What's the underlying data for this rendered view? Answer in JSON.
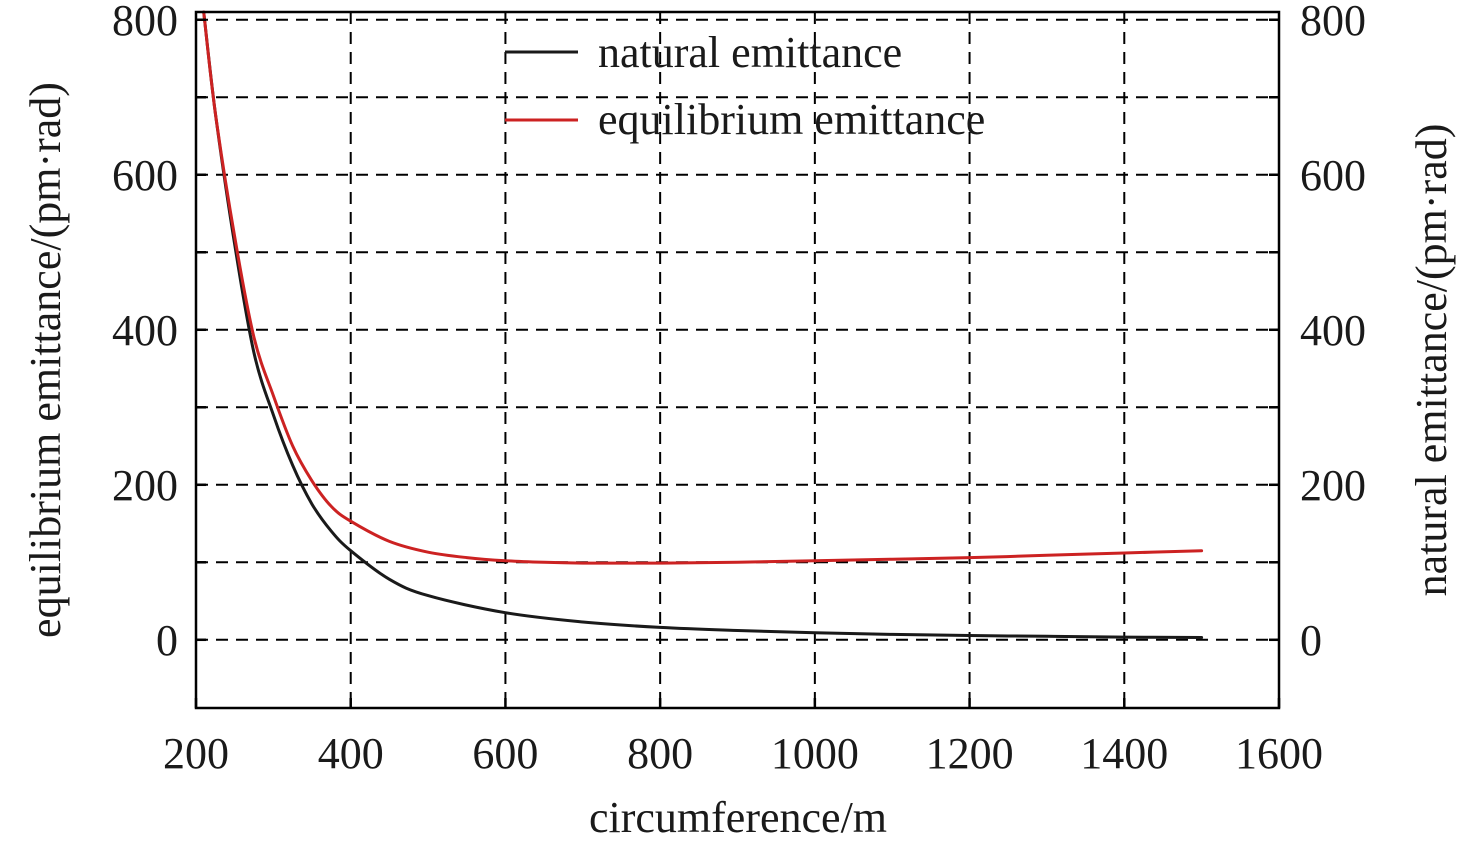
{
  "chart_data": {
    "type": "line",
    "xlabel": "circumference/m",
    "ylabel_left": "equilibrium emittance/(pm·rad)",
    "ylabel_right": "natural emittance/(pm·rad)",
    "xlim": [
      200,
      1600
    ],
    "ylim": [
      -88,
      810
    ],
    "x_ticks": [
      200,
      400,
      600,
      800,
      1000,
      1200,
      1400,
      1600
    ],
    "y_ticks": [
      0,
      200,
      400,
      600,
      800
    ],
    "y_gridlines": [
      0,
      100,
      200,
      300,
      400,
      500,
      600,
      700,
      800
    ],
    "grid": true,
    "legend_position": "top-center",
    "series": [
      {
        "name": "natural emittance",
        "color": "#1a1a1a",
        "x": [
          210,
          225,
          250,
          275,
          300,
          325,
          350,
          375,
          400,
          450,
          500,
          600,
          700,
          800,
          900,
          1000,
          1100,
          1200,
          1300,
          1400,
          1500
        ],
        "y": [
          810,
          680,
          510,
          370,
          290,
          225,
          175,
          140,
          115,
          78,
          57,
          35,
          23,
          16,
          12,
          9,
          7,
          5.5,
          4.5,
          3.5,
          3
        ]
      },
      {
        "name": "equilibrium emittance",
        "color": "#cc2222",
        "x": [
          210,
          225,
          250,
          275,
          300,
          325,
          350,
          375,
          400,
          450,
          500,
          550,
          600,
          650,
          700,
          800,
          900,
          1000,
          1100,
          1200,
          1300,
          1400,
          1500
        ],
        "y": [
          810,
          680,
          520,
          390,
          315,
          250,
          205,
          172,
          153,
          127,
          113,
          106,
          102,
          100,
          99,
          99,
          100,
          102,
          104,
          106,
          109,
          112,
          115
        ]
      }
    ]
  }
}
